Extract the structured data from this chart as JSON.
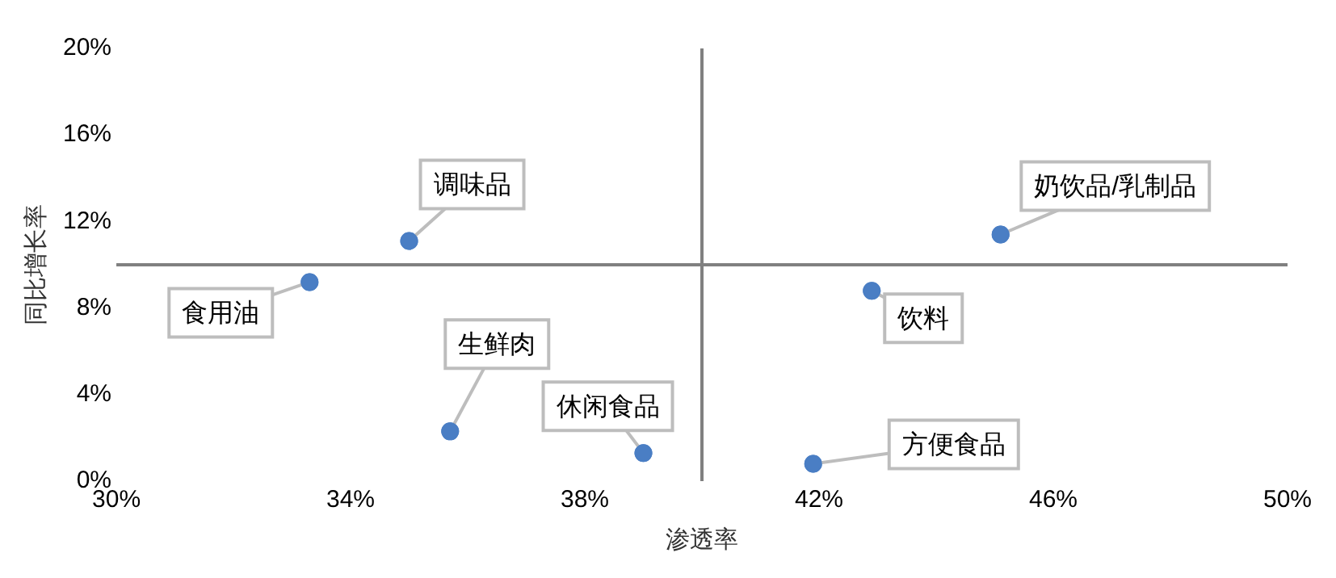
{
  "chart_data": {
    "type": "scatter",
    "xlabel": "渗透率",
    "ylabel": "同比增长率",
    "xlim": [
      30,
      50
    ],
    "xticks": [
      {
        "value": 30,
        "label": "30%"
      },
      {
        "value": 34,
        "label": "34%"
      },
      {
        "value": 38,
        "label": "38%"
      },
      {
        "value": 42,
        "label": "42%"
      },
      {
        "value": 46,
        "label": "46%"
      },
      {
        "value": 50,
        "label": "50%"
      }
    ],
    "ylim": [
      0,
      20
    ],
    "yticks": [
      {
        "value": 0,
        "label": "0%"
      },
      {
        "value": 4,
        "label": "4%"
      },
      {
        "value": 8,
        "label": "8%"
      },
      {
        "value": 12,
        "label": "12%"
      },
      {
        "value": 16,
        "label": "16%"
      },
      {
        "value": 20,
        "label": "20%"
      }
    ],
    "series": [
      {
        "color": "#4a7ec4",
        "x": [
          33.3,
          35.0,
          35.7,
          39.0,
          41.9,
          42.9,
          45.1
        ],
        "values": [
          9.2,
          11.1,
          2.3,
          1.3,
          0.8,
          8.8,
          11.4
        ]
      }
    ],
    "annotations": [
      {
        "text": "食用油",
        "x": 33.3,
        "y": 9.2
      },
      {
        "text": "调味品",
        "x": 35.0,
        "y": 11.1
      },
      {
        "text": "生鲜肉",
        "x": 35.7,
        "y": 2.3
      },
      {
        "text": "休闲食品",
        "x": 39.0,
        "y": 1.3
      },
      {
        "text": "方便食品",
        "x": 41.9,
        "y": 0.8
      },
      {
        "text": "饮料",
        "x": 42.9,
        "y": 8.8
      },
      {
        "text": "奶饮品/乳制品",
        "x": 45.1,
        "y": 11.4
      }
    ],
    "ref_lines": [
      {
        "axis": "x",
        "value": 40,
        "color": "#808080"
      },
      {
        "axis": "y",
        "value": 10,
        "color": "#808080"
      }
    ],
    "marker": "circle",
    "grid": false,
    "legend": false
  }
}
